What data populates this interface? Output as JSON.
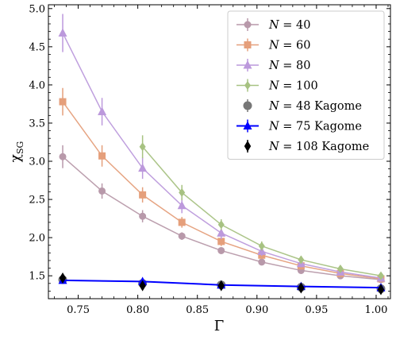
{
  "chart_data": {
    "type": "line",
    "xlabel": "Γ",
    "ylabel": "χ",
    "ylabel_sub": "SG",
    "xlim": [
      0.725,
      1.012
    ],
    "ylim": [
      1.2,
      5.05
    ],
    "xticks": [
      0.75,
      0.8,
      0.85,
      0.9,
      0.95,
      1.0
    ],
    "xtick_labels": [
      "0.75",
      "0.80",
      "0.85",
      "0.90",
      "0.95",
      "1.00"
    ],
    "yticks": [
      1.5,
      2.0,
      2.5,
      3.0,
      3.5,
      4.0,
      4.5,
      5.0
    ],
    "ytick_labels": [
      "1.5",
      "2.0",
      "2.5",
      "3.0",
      "3.5",
      "4.0",
      "4.5",
      "5.0"
    ],
    "legend_position": "top-right",
    "grid": false,
    "series": [
      {
        "name": "N = 40",
        "label_var": "N",
        "label_rest": " = 40",
        "marker": "circle",
        "color": "#b08ea0",
        "line": true,
        "linewidth": 1.5,
        "x": [
          0.737,
          0.77,
          0.804,
          0.837,
          0.87,
          0.904,
          0.937,
          0.97,
          1.004
        ],
        "y": [
          3.06,
          2.61,
          2.28,
          2.02,
          1.83,
          1.68,
          1.57,
          1.5,
          1.45
        ],
        "err": [
          0.15,
          0.1,
          0.08,
          0.05,
          0.04,
          0.04,
          0.03,
          0.03,
          0.03
        ]
      },
      {
        "name": "N = 60",
        "label_var": "N",
        "label_rest": " = 60",
        "marker": "square",
        "color": "#e2946c",
        "line": true,
        "linewidth": 1.5,
        "x": [
          0.737,
          0.77,
          0.804,
          0.837,
          0.87,
          0.904,
          0.937,
          0.97,
          1.004
        ],
        "y": [
          3.78,
          3.07,
          2.56,
          2.2,
          1.95,
          1.77,
          1.63,
          1.53,
          1.46
        ],
        "err": [
          0.18,
          0.14,
          0.1,
          0.07,
          0.06,
          0.05,
          0.04,
          0.04,
          0.03
        ]
      },
      {
        "name": "N = 80",
        "label_var": "N",
        "label_rest": " = 80",
        "marker": "triangle",
        "color": "#b48ed8",
        "line": true,
        "linewidth": 1.5,
        "x": [
          0.737,
          0.77,
          0.804,
          0.837,
          0.87,
          0.904,
          0.937,
          0.97,
          1.004
        ],
        "y": [
          4.68,
          3.65,
          2.91,
          2.42,
          2.06,
          1.82,
          1.66,
          1.55,
          1.47
        ],
        "err": [
          0.25,
          0.18,
          0.14,
          0.1,
          0.08,
          0.06,
          0.05,
          0.04,
          0.04
        ]
      },
      {
        "name": "N = 100",
        "label_var": "N",
        "label_rest": " = 100",
        "marker": "diamond",
        "color": "#9dbb74",
        "line": true,
        "linewidth": 1.5,
        "x": [
          0.804,
          0.837,
          0.87,
          0.904,
          0.937,
          0.97,
          1.004
        ],
        "y": [
          3.19,
          2.59,
          2.17,
          1.89,
          1.71,
          1.59,
          1.5
        ],
        "err": [
          0.15,
          0.1,
          0.07,
          0.06,
          0.05,
          0.04,
          0.04
        ]
      },
      {
        "name": "N = 48 Kagome",
        "label_var": "N",
        "label_rest": " = 48 Kagome",
        "marker": "circle-large",
        "color": "#777777",
        "line": false,
        "x": [
          0.737,
          0.804,
          0.87,
          0.937,
          1.004
        ],
        "y": [
          1.45,
          1.4,
          1.38,
          1.35,
          1.33
        ],
        "err": [
          0.03,
          0.03,
          0.03,
          0.03,
          0.03
        ]
      },
      {
        "name": "N = 75 Kagome",
        "label_var": "N",
        "label_rest": " = 75 Kagome",
        "marker": "triangle",
        "color": "#0000ff",
        "line": true,
        "linewidth": 2,
        "x": [
          0.737,
          0.804,
          0.87,
          0.937,
          1.004
        ],
        "y": [
          1.44,
          1.425,
          1.38,
          1.36,
          1.345
        ],
        "err": [
          0.03,
          0.03,
          0.03,
          0.03,
          0.03
        ]
      },
      {
        "name": "N = 108 Kagome",
        "label_var": "N",
        "label_rest": " = 108 Kagome",
        "marker": "diamond-thin",
        "color": "#000000",
        "line": false,
        "x": [
          0.737,
          0.804,
          0.87,
          0.937,
          1.004
        ],
        "y": [
          1.47,
          1.37,
          1.37,
          1.34,
          1.32
        ],
        "err": [
          0.04,
          0.04,
          0.04,
          0.04,
          0.04
        ]
      }
    ]
  }
}
